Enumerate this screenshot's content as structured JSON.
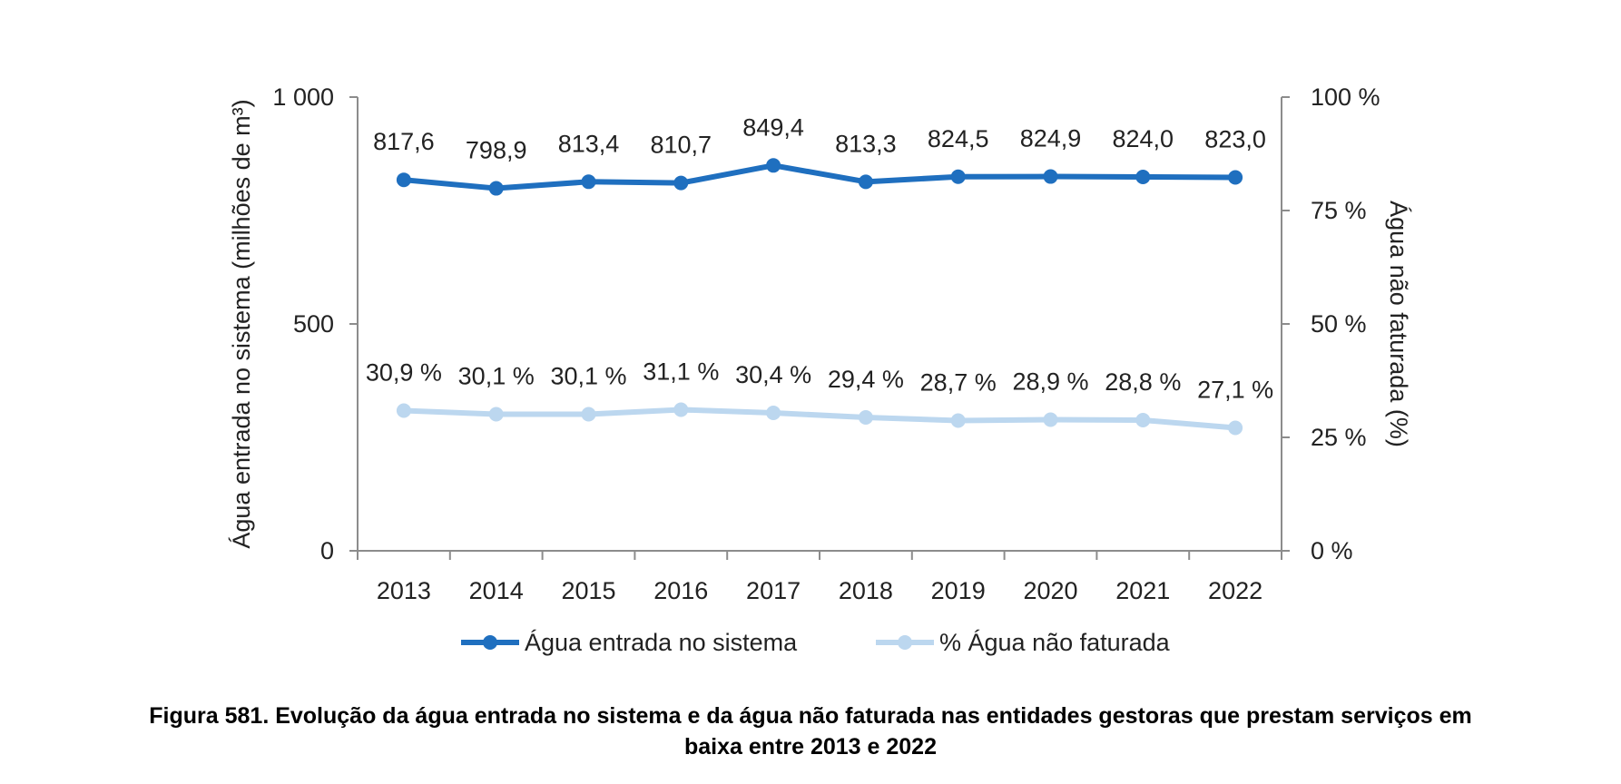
{
  "chart_data": {
    "type": "line",
    "categories": [
      "2013",
      "2014",
      "2015",
      "2016",
      "2017",
      "2018",
      "2019",
      "2020",
      "2021",
      "2022"
    ],
    "series": [
      {
        "name": "Água entrada no sistema",
        "axis": "left",
        "color": "#1f6fbf",
        "values": [
          817.6,
          798.9,
          813.4,
          810.7,
          849.4,
          813.3,
          824.5,
          824.9,
          824.0,
          823.0
        ],
        "labels": [
          "817,6",
          "798,9",
          "813,4",
          "810,7",
          "849,4",
          "813,3",
          "824,5",
          "824,9",
          "824,0",
          "823,0"
        ]
      },
      {
        "name": "% Água não faturada",
        "axis": "right",
        "color": "#bcd7ef",
        "values": [
          30.9,
          30.1,
          30.1,
          31.1,
          30.4,
          29.4,
          28.7,
          28.9,
          28.8,
          27.1
        ],
        "labels": [
          "30,9 %",
          "30,1 %",
          "30,1 %",
          "31,1 %",
          "30,4 %",
          "29,4 %",
          "28,7 %",
          "28,9 %",
          "28,8 %",
          "27,1 %"
        ]
      }
    ],
    "ylabel": "Água entrada no sistema (milhões de m³)",
    "y2label": "Água não faturada (%)",
    "ylim": [
      0,
      1000
    ],
    "y2lim": [
      0,
      100
    ],
    "yticks": [
      0,
      500,
      1000
    ],
    "ytick_labels": [
      "0",
      "500",
      "1 000"
    ],
    "y2ticks": [
      0,
      25,
      50,
      75,
      100
    ],
    "y2tick_labels": [
      "0 %",
      "25 %",
      "50 %",
      "75 %",
      "100 %"
    ],
    "grid": false,
    "legend_position": "bottom"
  },
  "caption": {
    "line1": "Figura 581. Evolução da água entrada no sistema e da água não faturada nas entidades gestoras que prestam serviços em",
    "line2": "baixa entre 2013 e 2022"
  }
}
